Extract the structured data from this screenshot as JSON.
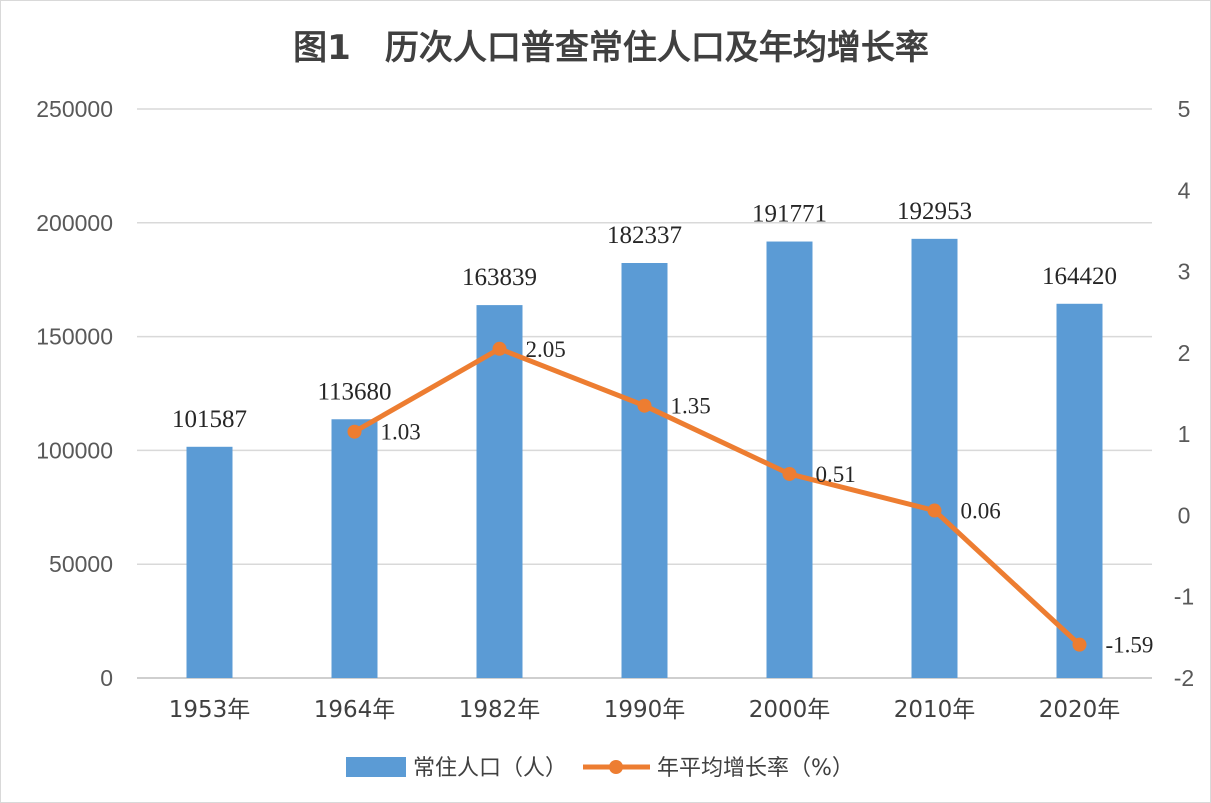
{
  "chart_data": {
    "type": "bar",
    "title": "图1　历次人口普查常住人口及年均增长率",
    "categories": [
      "1953年",
      "1964年",
      "1982年",
      "1990年",
      "2000年",
      "2010年",
      "2020年"
    ],
    "series": [
      {
        "name": "常住人口（人）",
        "type": "bar",
        "axis": "left",
        "color": "#5b9bd5",
        "values": [
          101587,
          113680,
          163839,
          182337,
          191771,
          192953,
          164420
        ]
      },
      {
        "name": "年平均增长率（%）",
        "type": "line",
        "axis": "right",
        "color": "#ed7d31",
        "values": [
          null,
          1.03,
          2.05,
          1.35,
          0.51,
          0.06,
          -1.59
        ]
      }
    ],
    "left_axis": {
      "ylim": [
        0,
        250000
      ],
      "ticks": [
        "0",
        "50000",
        "100000",
        "150000",
        "200000",
        "250000"
      ]
    },
    "right_axis": {
      "ylim": [
        -2,
        5
      ],
      "ticks": [
        "-2",
        "-1",
        "0",
        "1",
        "2",
        "3",
        "4",
        "5"
      ]
    },
    "grid": true,
    "legend": "bottom"
  }
}
